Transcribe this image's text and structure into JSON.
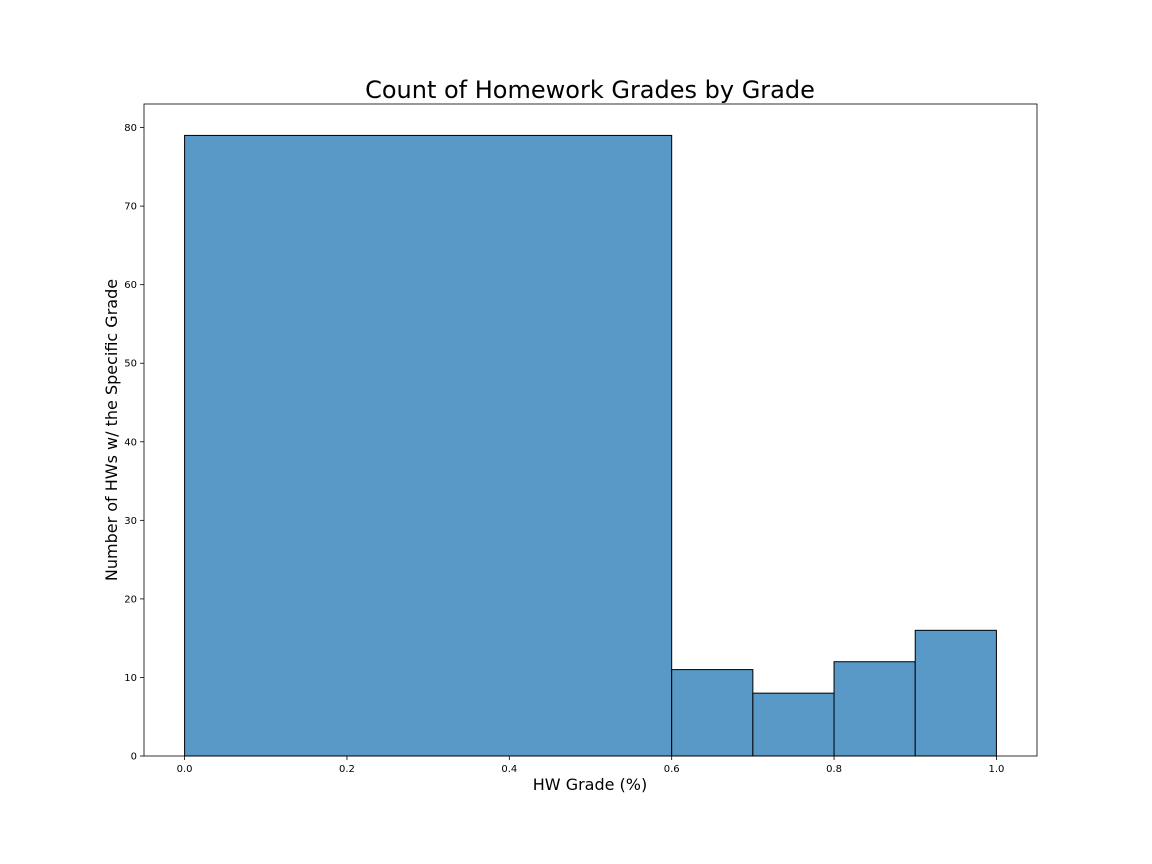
{
  "chart_data": {
    "type": "bar",
    "title": "Count of Homework Grades by Grade",
    "xlabel": "HW Grade (%)",
    "ylabel": "Number of HWs w/ the Specific Grade",
    "xlim": [
      -0.05,
      1.05
    ],
    "ylim": [
      0,
      83
    ],
    "bins": [
      {
        "x0": 0.0,
        "x1": 0.6,
        "count": 79
      },
      {
        "x0": 0.6,
        "x1": 0.7,
        "count": 11
      },
      {
        "x0": 0.7,
        "x1": 0.8,
        "count": 8
      },
      {
        "x0": 0.8,
        "x1": 0.9,
        "count": 12
      },
      {
        "x0": 0.9,
        "x1": 1.0,
        "count": 16
      }
    ],
    "xticks": [
      0.0,
      0.2,
      0.4,
      0.6,
      0.8,
      1.0
    ],
    "xtick_labels": [
      "0.0",
      "0.2",
      "0.4",
      "0.6",
      "0.8",
      "1.0"
    ],
    "yticks": [
      0,
      10,
      20,
      30,
      40,
      50,
      60,
      70,
      80
    ],
    "ytick_labels": [
      "0",
      "10",
      "20",
      "30",
      "40",
      "50",
      "60",
      "70",
      "80"
    ],
    "grid": false,
    "legend": "none",
    "bar_color": "#5899C7",
    "edge_color": "#000000"
  }
}
